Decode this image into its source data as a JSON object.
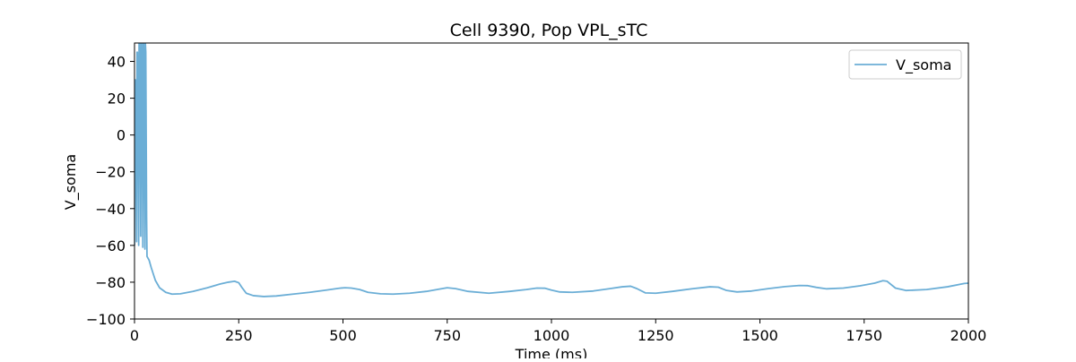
{
  "chart_data": {
    "type": "line",
    "title": "Cell 9390, Pop VPL_sTC",
    "xlabel": "Time (ms)",
    "ylabel": "V_soma",
    "xlim": [
      0,
      2000
    ],
    "ylim": [
      -100,
      50
    ],
    "x_ticks": [
      0,
      250,
      500,
      750,
      1000,
      1250,
      1500,
      1750,
      2000
    ],
    "y_ticks": [
      -100,
      -80,
      -60,
      -40,
      -20,
      0,
      20,
      40
    ],
    "grid": false,
    "legend_position": "top-right",
    "series": [
      {
        "name": "V_soma",
        "color": "#6baed6",
        "x": [
          0,
          2,
          4,
          5,
          6,
          7,
          9,
          10,
          11,
          12,
          14,
          15,
          16,
          17,
          19,
          20,
          21,
          22,
          24,
          25,
          26,
          27,
          29,
          30,
          35,
          40,
          50,
          60,
          75,
          90,
          110,
          140,
          175,
          205,
          225,
          240,
          250,
          258,
          268,
          285,
          310,
          340,
          380,
          420,
          460,
          490,
          505,
          520,
          540,
          560,
          590,
          620,
          660,
          700,
          730,
          750,
          770,
          800,
          850,
          900,
          940,
          965,
          985,
          1000,
          1020,
          1050,
          1100,
          1140,
          1170,
          1190,
          1205,
          1225,
          1250,
          1290,
          1340,
          1380,
          1400,
          1420,
          1445,
          1480,
          1520,
          1560,
          1595,
          1615,
          1635,
          1660,
          1700,
          1740,
          1775,
          1795,
          1805,
          1825,
          1850,
          1900,
          1950,
          1990,
          2000
        ],
        "y": [
          -60,
          30,
          -10,
          -58,
          45,
          45,
          -15,
          -60,
          50,
          50,
          -12,
          -55,
          50,
          50,
          -20,
          -61,
          50,
          50,
          -30,
          -62,
          50,
          45,
          -45,
          -66,
          -68,
          -72,
          -79,
          -83,
          -85.5,
          -86.5,
          -86.3,
          -85,
          -83,
          -81,
          -80,
          -79.5,
          -80.3,
          -83,
          -86,
          -87.3,
          -87.8,
          -87.5,
          -86.5,
          -85.5,
          -84.3,
          -83.3,
          -83,
          -83.2,
          -84,
          -85.5,
          -86.3,
          -86.5,
          -86,
          -85,
          -83.8,
          -83,
          -83.5,
          -85,
          -86,
          -85,
          -84,
          -83.2,
          -83.3,
          -84.3,
          -85.3,
          -85.5,
          -84.8,
          -83.5,
          -82.5,
          -82.2,
          -83.5,
          -85.8,
          -86,
          -85,
          -83.5,
          -82.5,
          -82.7,
          -84.5,
          -85.3,
          -84.8,
          -83.5,
          -82.4,
          -81.8,
          -81.9,
          -82.8,
          -83.6,
          -83.2,
          -82,
          -80.5,
          -79.2,
          -79.5,
          -83.2,
          -84.5,
          -84,
          -82.5,
          -80.7,
          -80.5
        ]
      }
    ]
  }
}
